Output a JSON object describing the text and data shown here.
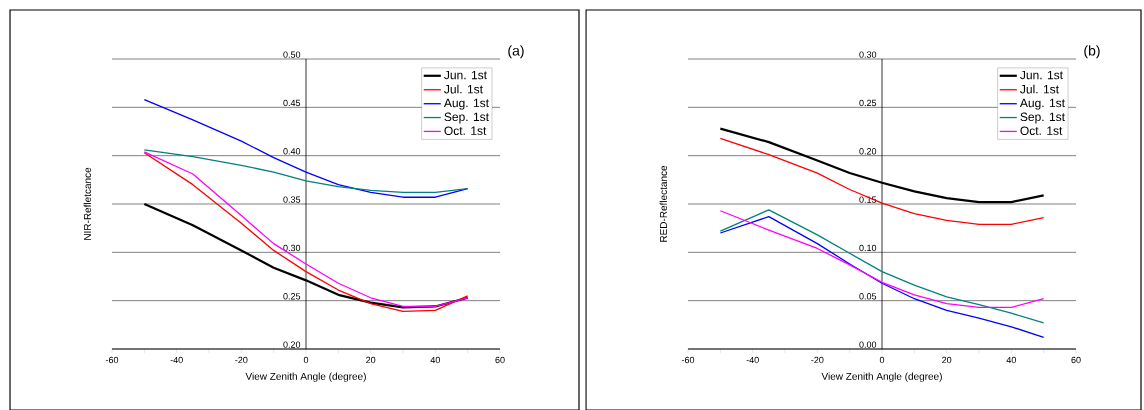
{
  "chart_data": [
    {
      "type": "line",
      "annotations": [
        "(a)"
      ],
      "xlabel": "View Zenith Angle (degree)",
      "ylabel": "NIR-Refletcance",
      "x": [
        -50,
        -35,
        -20,
        -10,
        0,
        10,
        20,
        30,
        40,
        50
      ],
      "xlim": [
        -60,
        60
      ],
      "xticks": [
        -60,
        {
          "value": -50,
          "label": null
        },
        -40,
        {
          "value": -30,
          "label": null
        },
        -20,
        {
          "value": -10,
          "label": null
        },
        0,
        {
          "value": 10,
          "label": null
        },
        20,
        {
          "value": 30,
          "label": null
        },
        40,
        {
          "value": 50,
          "label": null
        },
        60
      ],
      "ylim": [
        0.2,
        0.5
      ],
      "yticks": [
        {
          "value": 0.2,
          "label": "0.20"
        },
        {
          "value": 0.25,
          "label": "0.25"
        },
        {
          "value": 0.3,
          "label": "0.30"
        },
        {
          "value": 0.35,
          "label": "0.35"
        },
        {
          "value": 0.4,
          "label": "0.40"
        },
        {
          "value": 0.45,
          "label": "0.45"
        },
        {
          "value": 0.5,
          "label": "0.50"
        }
      ],
      "grid": "y",
      "legend": "top right",
      "line_style": "solid",
      "series": [
        {
          "name": "Jun. 1st",
          "color": "#000000",
          "values": [
            0.35,
            0.328,
            0.302,
            0.284,
            0.271,
            0.256,
            0.248,
            0.243,
            0.244,
            0.253
          ]
        },
        {
          "name": "Jul. 1st",
          "color": "#ff0000",
          "values": [
            0.403,
            0.37,
            0.33,
            0.302,
            0.28,
            0.261,
            0.247,
            0.239,
            0.24,
            0.255
          ]
        },
        {
          "name": "Aug. 1st",
          "color": "#0000ff",
          "values": [
            0.458,
            0.437,
            0.415,
            0.398,
            0.383,
            0.37,
            0.362,
            0.357,
            0.357,
            0.366
          ]
        },
        {
          "name": "Sep. 1st",
          "color": "#008080",
          "values": [
            0.406,
            0.399,
            0.39,
            0.383,
            0.374,
            0.368,
            0.364,
            0.362,
            0.362,
            0.366
          ]
        },
        {
          "name": "Oct. 1st",
          "color": "#ff00ff",
          "values": [
            0.404,
            0.381,
            0.338,
            0.309,
            0.288,
            0.268,
            0.253,
            0.244,
            0.244,
            0.253
          ]
        }
      ]
    },
    {
      "type": "line",
      "annotations": [
        "(b)"
      ],
      "xlabel": "View Zenith Angle (degree)",
      "ylabel": "RED-Reflectance",
      "x": [
        -50,
        -35,
        -20,
        -10,
        0,
        10,
        20,
        30,
        40,
        50
      ],
      "xlim": [
        -60,
        60
      ],
      "xticks": [
        -60,
        {
          "value": -50,
          "label": null
        },
        -40,
        {
          "value": -30,
          "label": null
        },
        -20,
        {
          "value": -10,
          "label": null
        },
        0,
        {
          "value": 10,
          "label": null
        },
        20,
        {
          "value": 30,
          "label": null
        },
        40,
        {
          "value": 50,
          "label": null
        },
        60
      ],
      "ylim": [
        0,
        0.3
      ],
      "yticks": [
        {
          "value": 0,
          "label": "0.00"
        },
        {
          "value": 0.05,
          "label": "0.05"
        },
        {
          "value": 0.1,
          "label": "0.10"
        },
        {
          "value": 0.15,
          "label": "0.15"
        },
        {
          "value": 0.2,
          "label": "0.20"
        },
        {
          "value": 0.25,
          "label": "0.25"
        },
        {
          "value": 0.3,
          "label": "0.30"
        }
      ],
      "grid": "y",
      "legend": "top right",
      "line_style": "solid",
      "series": [
        {
          "name": "Jun. 1st",
          "color": "#000000",
          "values": [
            0.228,
            0.214,
            0.195,
            0.182,
            0.172,
            0.163,
            0.156,
            0.152,
            0.152,
            0.159
          ]
        },
        {
          "name": "Jul. 1st",
          "color": "#ff0000",
          "values": [
            0.218,
            0.201,
            0.182,
            0.165,
            0.151,
            0.14,
            0.133,
            0.129,
            0.129,
            0.136
          ]
        },
        {
          "name": "Aug. 1st",
          "color": "#0000ff",
          "values": [
            0.12,
            0.137,
            0.109,
            0.088,
            0.068,
            0.052,
            0.04,
            0.032,
            0.023,
            0.012
          ]
        },
        {
          "name": "Sep. 1st",
          "color": "#008080",
          "values": [
            0.122,
            0.144,
            0.118,
            0.099,
            0.08,
            0.066,
            0.054,
            0.046,
            0.037,
            0.027
          ]
        },
        {
          "name": "Oct. 1st",
          "color": "#ff00ff",
          "values": [
            0.143,
            0.123,
            0.104,
            0.087,
            0.069,
            0.056,
            0.047,
            0.043,
            0.043,
            0.052
          ]
        }
      ]
    }
  ]
}
